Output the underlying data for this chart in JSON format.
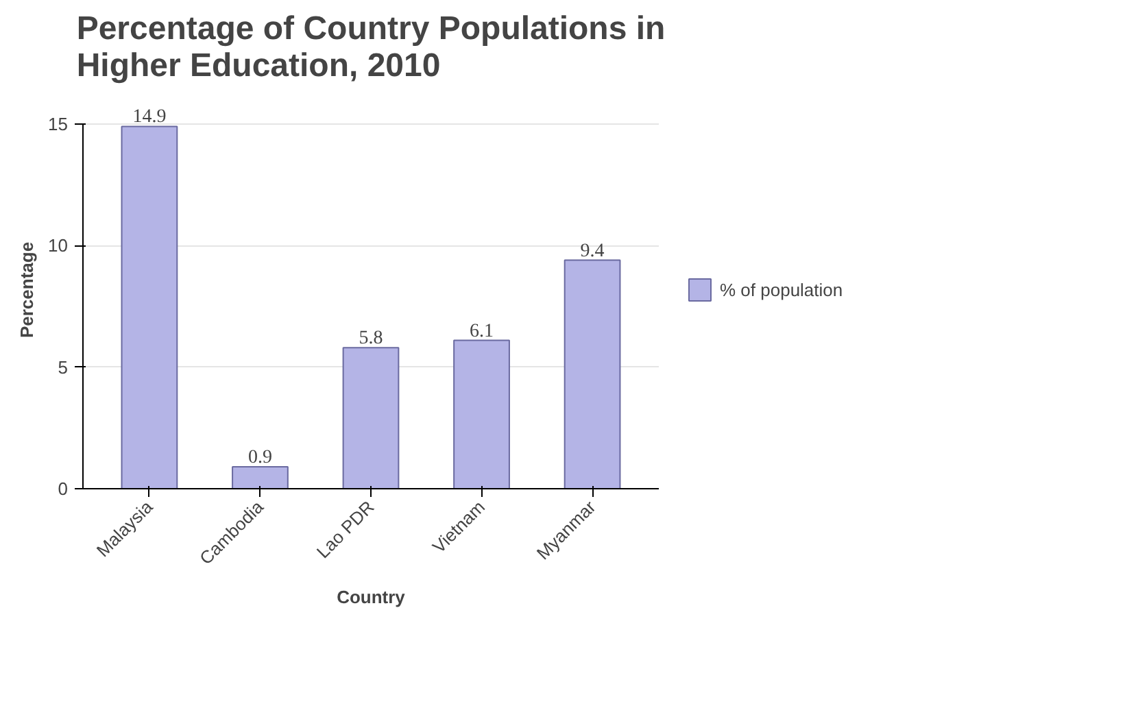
{
  "chart_data": {
    "type": "bar",
    "title": "Percentage of Country Populations in Higher Education, 2010",
    "xlabel": "Country",
    "ylabel": "Percentage",
    "categories": [
      "Malaysia",
      "Cambodia",
      "Lao PDR",
      "Vietnam",
      "Myanmar"
    ],
    "series": [
      {
        "name": "% of population",
        "color": "#b4b4e6",
        "values": [
          14.9,
          0.9,
          5.8,
          6.1,
          9.4
        ]
      }
    ],
    "ylim": [
      0,
      15
    ],
    "yticks": [
      0,
      5,
      10,
      15
    ],
    "grid": "y",
    "legend": "right",
    "data_labels": true
  }
}
